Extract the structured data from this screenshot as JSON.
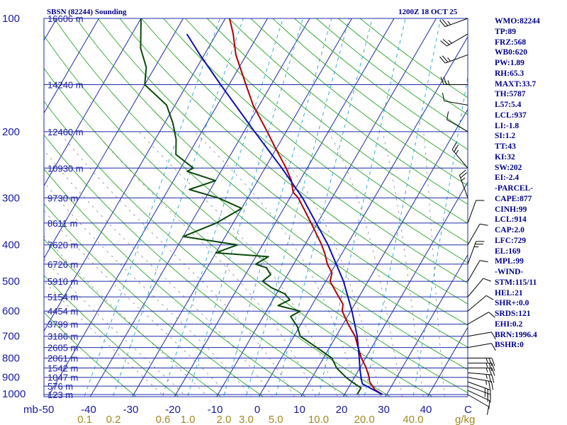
{
  "header": {
    "station": "SBSN (82244) Sounding",
    "time": "1200Z 18 OCT 25"
  },
  "chart_data": {
    "type": "skew-t",
    "pressure_labels": [
      "100",
      "200",
      "300",
      "400",
      "500",
      "600",
      "700",
      "800",
      "900",
      "1000"
    ],
    "pressure_levels": [
      100,
      200,
      300,
      400,
      500,
      600,
      700,
      800,
      900,
      1000
    ],
    "height_labels": [
      {
        "p": 100,
        "label": "16606 m"
      },
      {
        "p": 150,
        "label": "14240 m"
      },
      {
        "p": 200,
        "label": "12460 m"
      },
      {
        "p": 250,
        "label": "10930 m"
      },
      {
        "p": 300,
        "label": "9730 m"
      },
      {
        "p": 350,
        "label": "8611 m"
      },
      {
        "p": 400,
        "label": "7620 m"
      },
      {
        "p": 450,
        "label": "6726 m"
      },
      {
        "p": 500,
        "label": "5910 m"
      },
      {
        "p": 550,
        "label": "5154 m"
      },
      {
        "p": 600,
        "label": "4454 m"
      },
      {
        "p": 650,
        "label": "3799 m"
      },
      {
        "p": 700,
        "label": "3186 m"
      },
      {
        "p": 750,
        "label": "2605 m"
      },
      {
        "p": 800,
        "label": "2061 m"
      },
      {
        "p": 850,
        "label": "1542 m"
      },
      {
        "p": 900,
        "label": "1047 m"
      },
      {
        "p": 950,
        "label": "576 m"
      },
      {
        "p": 1000,
        "label": "123 m"
      }
    ],
    "temp_labels": [
      "mb",
      "-50",
      "-40",
      "-30",
      "-20",
      "-10",
      "0",
      "10",
      "20",
      "30",
      "40",
      "C"
    ],
    "temp_values": [
      -50,
      -40,
      -30,
      -20,
      -10,
      0,
      10,
      20,
      30,
      40
    ],
    "mixing_ratio_labels": [
      "0.1",
      "0.2",
      "0.6",
      "1.0",
      "2.0",
      "3.0",
      "5.0",
      "10.0",
      "20.0",
      "40.0",
      "g/kg"
    ],
    "mixing_ratio_values": [
      0.1,
      0.2,
      0.6,
      1.0,
      2.0,
      3.0,
      5.0,
      10.0,
      20.0,
      40.0
    ],
    "series": [
      {
        "name": "temperature",
        "color": "#b00000",
        "points": [
          [
            1000,
            29
          ],
          [
            970,
            26.5
          ],
          [
            950,
            25.5
          ],
          [
            925,
            24.2
          ],
          [
            900,
            23.5
          ],
          [
            850,
            21.5
          ],
          [
            800,
            19.0
          ],
          [
            750,
            16.8
          ],
          [
            700,
            14.5
          ],
          [
            650,
            11.2
          ],
          [
            600,
            8.0
          ],
          [
            575,
            7.2
          ],
          [
            550,
            5.2
          ],
          [
            500,
            1.0
          ],
          [
            475,
            0.3
          ],
          [
            450,
            -2.0
          ],
          [
            425,
            -3.8
          ],
          [
            400,
            -6.0
          ],
          [
            350,
            -11.5
          ],
          [
            300,
            -18.0
          ],
          [
            290,
            -20.0
          ],
          [
            270,
            -22.0
          ],
          [
            250,
            -25.0
          ],
          [
            220,
            -30.5
          ],
          [
            200,
            -34.5
          ],
          [
            170,
            -41.5
          ],
          [
            150,
            -46.0
          ],
          [
            125,
            -52.5
          ],
          [
            110,
            -56.0
          ],
          [
            100,
            -59.0
          ]
        ]
      },
      {
        "name": "dewpoint",
        "color": "#0a4a0a",
        "points": [
          [
            1000,
            23
          ],
          [
            960,
            23.0
          ],
          [
            925,
            20.0
          ],
          [
            900,
            18.0
          ],
          [
            850,
            14.5
          ],
          [
            800,
            12.0
          ],
          [
            750,
            7.0
          ],
          [
            700,
            1.5
          ],
          [
            660,
            -0.5
          ],
          [
            640,
            -2.0
          ],
          [
            620,
            -3.5
          ],
          [
            600,
            -2.0
          ],
          [
            580,
            -8.0
          ],
          [
            560,
            -6.0
          ],
          [
            540,
            -8.0
          ],
          [
            520,
            -12.0
          ],
          [
            500,
            -15.0
          ],
          [
            480,
            -14.0
          ],
          [
            460,
            -16.0
          ],
          [
            450,
            -19.0
          ],
          [
            430,
            -17.0
          ],
          [
            420,
            -30.0
          ],
          [
            400,
            -26.0
          ],
          [
            380,
            -40.0
          ],
          [
            350,
            -34.0
          ],
          [
            320,
            -30.0
          ],
          [
            300,
            -37.0
          ],
          [
            285,
            -45.0
          ],
          [
            270,
            -40.0
          ],
          [
            255,
            -48.0
          ],
          [
            250,
            -47.0
          ],
          [
            230,
            -53.0
          ],
          [
            210,
            -55.0
          ],
          [
            190,
            -58.0
          ],
          [
            170,
            -62.0
          ],
          [
            150,
            -70.0
          ],
          [
            135,
            -72.0
          ],
          [
            120,
            -76.0
          ],
          [
            100,
            -80.0
          ]
        ]
      },
      {
        "name": "parcel",
        "color": "#1010b0",
        "points": [
          [
            1000,
            29
          ],
          [
            937,
            22.8
          ],
          [
            914,
            22.0
          ],
          [
            850,
            20.0
          ],
          [
            800,
            18.5
          ],
          [
            700,
            15.0
          ],
          [
            600,
            10.3
          ],
          [
            500,
            4.2
          ],
          [
            400,
            -4.5
          ],
          [
            300,
            -17.0
          ],
          [
            250,
            -26.0
          ],
          [
            200,
            -37.5
          ],
          [
            169,
            -46.0
          ],
          [
            150,
            -52.0
          ],
          [
            125,
            -61.0
          ],
          [
            110,
            -67.0
          ]
        ]
      }
    ],
    "wind_barbs": [
      {
        "p": 1000,
        "dir": 120,
        "spd": 10
      },
      {
        "p": 975,
        "dir": 115,
        "spd": 10
      },
      {
        "p": 950,
        "dir": 110,
        "spd": 15
      },
      {
        "p": 925,
        "dir": 110,
        "spd": 15
      },
      {
        "p": 900,
        "dir": 100,
        "spd": 15
      },
      {
        "p": 875,
        "dir": 95,
        "spd": 15
      },
      {
        "p": 850,
        "dir": 90,
        "spd": 15
      },
      {
        "p": 825,
        "dir": 90,
        "spd": 15
      },
      {
        "p": 800,
        "dir": 90,
        "spd": 15
      },
      {
        "p": 750,
        "dir": 80,
        "spd": 10
      },
      {
        "p": 700,
        "dir": 80,
        "spd": 10
      },
      {
        "p": 650,
        "dir": 60,
        "spd": 10
      },
      {
        "p": 600,
        "dir": 50,
        "spd": 10
      },
      {
        "p": 550,
        "dir": 40,
        "spd": 10
      },
      {
        "p": 500,
        "dir": 30,
        "spd": 10
      },
      {
        "p": 450,
        "dir": 20,
        "spd": 15
      },
      {
        "p": 400,
        "dir": 30,
        "spd": 10
      },
      {
        "p": 350,
        "dir": 20,
        "spd": 10
      },
      {
        "p": 300,
        "dir": 340,
        "spd": 15
      },
      {
        "p": 250,
        "dir": 320,
        "spd": 15
      },
      {
        "p": 200,
        "dir": 300,
        "spd": 10
      },
      {
        "p": 170,
        "dir": 280,
        "spd": 10
      },
      {
        "p": 150,
        "dir": 270,
        "spd": 15
      },
      {
        "p": 125,
        "dir": 250,
        "spd": 15
      },
      {
        "p": 110,
        "dir": 240,
        "spd": 15
      },
      {
        "p": 100,
        "dir": 250,
        "spd": 15
      }
    ]
  },
  "indices": [
    "WMO:82244",
    "TP:89",
    "FRZ:568",
    "WB0:620",
    "PW:1.89",
    "RH:65.3",
    "MAXT:33.7",
    "TH:5787",
    "L57:5.4",
    "LCL:937",
    "LI:-1.8",
    "SI:1.2",
    "TT:43",
    "KI:32",
    "SW:202",
    "EI:-2.4",
    "-PARCEL-",
    "CAPE:877",
    "CINH:99",
    "LCL:914",
    "CAP:2.0",
    "LFC:729",
    "EL:169",
    "MPL:99",
    "-WIND-",
    "STM:115/11",
    "HEL:21",
    "SHR+:0.0",
    "SRDS:121",
    "EHI:0.2",
    "BRN:1996.4",
    "BSHR:0"
  ],
  "colors": {
    "isobar": "#1c2aa8",
    "isotherm": "#1c2aa8",
    "dry_adiabat": "#2aa32a",
    "moist_adiabat": "#8a8a8a",
    "mixing_ratio": "#22a5d0",
    "temperature": "#b00000",
    "dewpoint": "#0a4a0a",
    "parcel": "#1010b0",
    "text": "#00008b"
  }
}
